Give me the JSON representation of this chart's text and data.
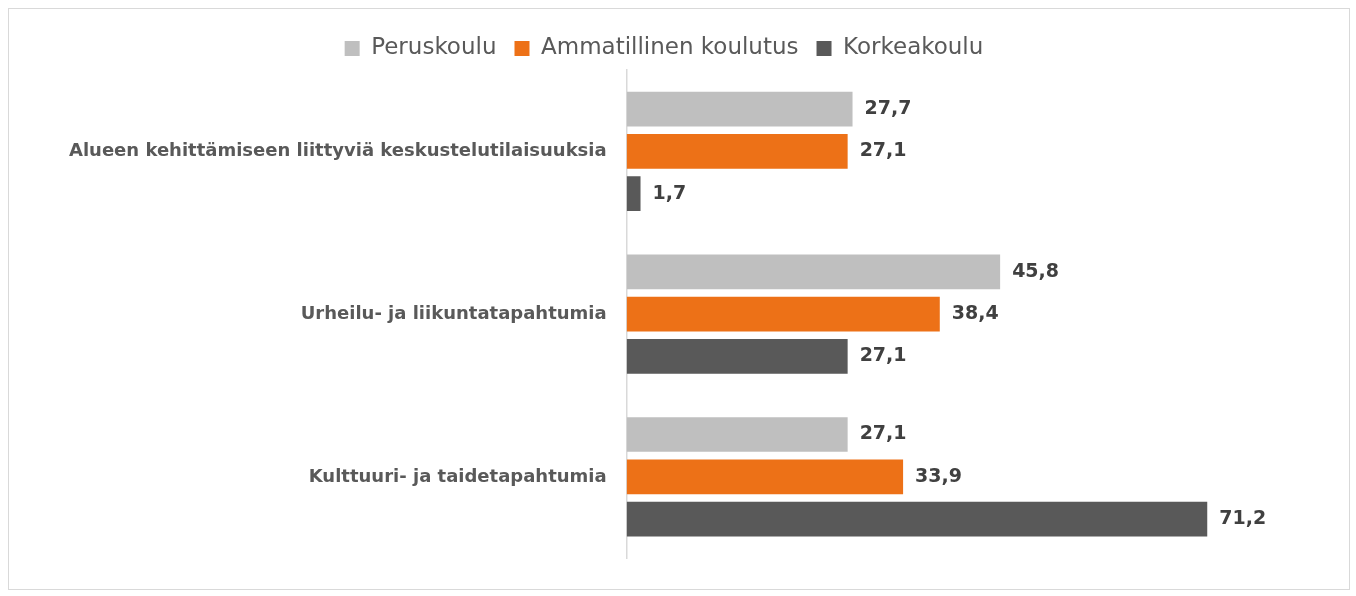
{
  "chart_data": {
    "type": "bar",
    "orientation": "horizontal",
    "categories": [
      "Alueen kehittämiseen liittyviä keskustelutilaisuuksia",
      "Urheilu- ja liikuntatapahtumia",
      "Kulttuuri- ja taidetapahtumia"
    ],
    "series": [
      {
        "name": "Peruskoulu",
        "color": "#bfbfbf",
        "values": [
          27.7,
          45.8,
          27.1
        ],
        "value_labels": [
          "27,7",
          "45,8",
          "27,1"
        ]
      },
      {
        "name": "Ammatillinen koulutus",
        "color": "#ed7117",
        "values": [
          27.1,
          38.4,
          33.9
        ],
        "value_labels": [
          "27,1",
          "38,4",
          "33,9"
        ]
      },
      {
        "name": "Korkeakoulu",
        "color": "#595959",
        "values": [
          1.7,
          27.1,
          71.2
        ],
        "value_labels": [
          "1,7",
          "27,1",
          "71,2"
        ]
      }
    ],
    "tick_labels": "y",
    "grid": false,
    "legend": "top"
  }
}
